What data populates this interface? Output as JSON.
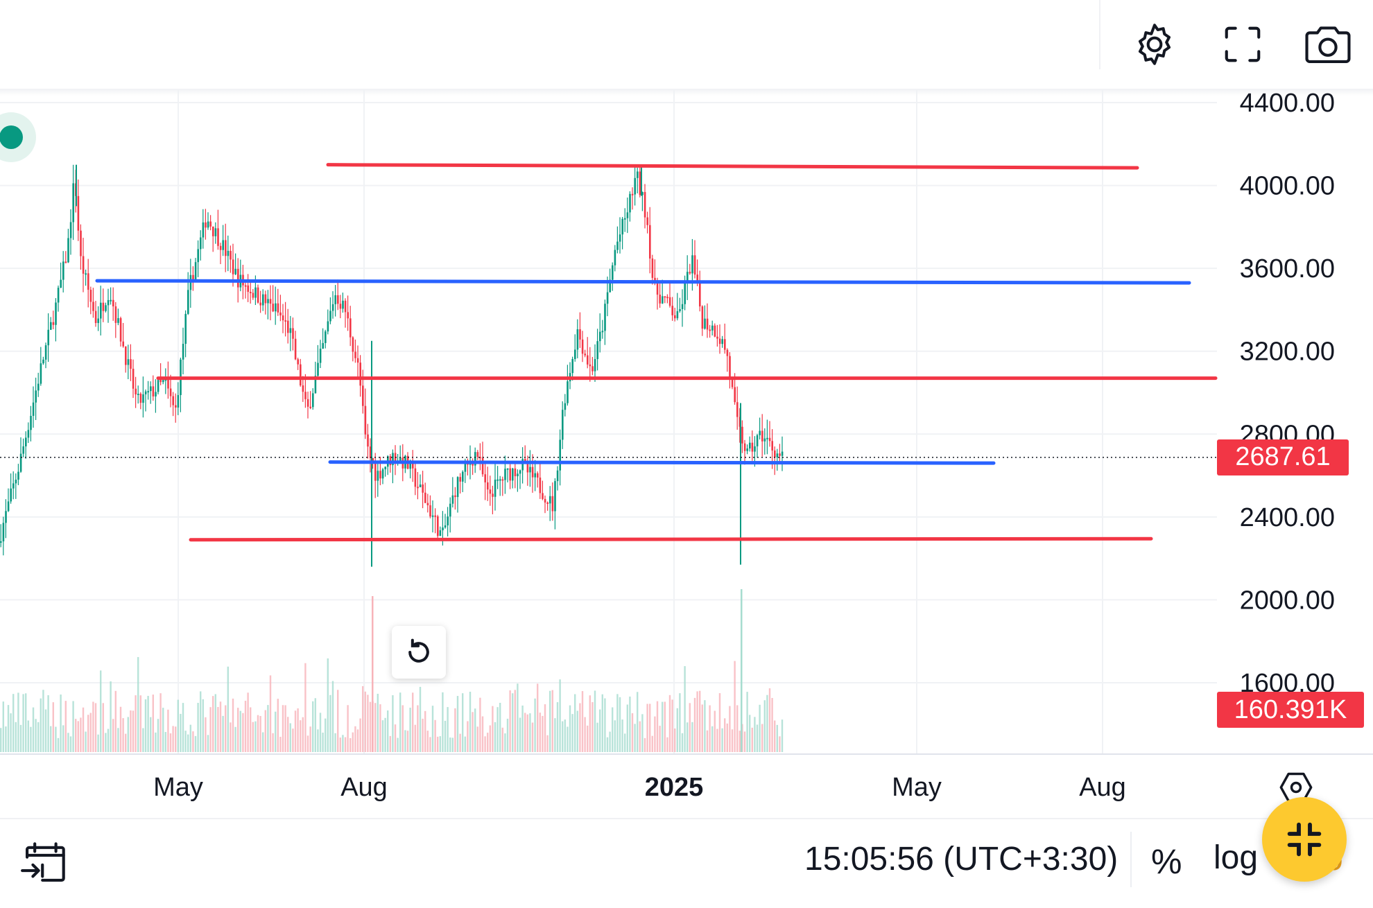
{
  "toolbar": {
    "settings_icon": "gear-icon",
    "fullscreen_icon": "fullscreen-icon",
    "screenshot_icon": "camera-icon"
  },
  "chart_data": {
    "type": "candlestick",
    "title": "",
    "xlabel": "",
    "ylabel": "",
    "ylim": [
      1600,
      4400
    ],
    "y_ticks": [
      "4400.00",
      "4000.00",
      "3600.00",
      "3200.00",
      "2800.00",
      "2400.00",
      "2000.00",
      "1600.00"
    ],
    "x_ticks": [
      {
        "label": "May",
        "bold": false
      },
      {
        "label": "Aug",
        "bold": false
      },
      {
        "label": "2025",
        "bold": true
      },
      {
        "label": "May",
        "bold": false
      },
      {
        "label": "Aug",
        "bold": false
      }
    ],
    "grid": true,
    "last_price": "2687.61",
    "last_volume": "160.391K",
    "horizontal_lines": [
      {
        "color": "#f23645",
        "price_start": 4100,
        "price_end": 4085
      },
      {
        "color": "#2962ff",
        "price_start": 3540,
        "price_end": 3530
      },
      {
        "color": "#f23645",
        "price_start": 3070,
        "price_end": 3070
      },
      {
        "color": "#2962ff",
        "price_start": 2665,
        "price_end": 2660
      },
      {
        "color": "#f23645",
        "price_start": 2290,
        "price_end": 2295
      }
    ],
    "colors": {
      "up": "#089981",
      "down": "#f23645",
      "price_tag": "#f23645"
    }
  },
  "bottom": {
    "date_range_icon": "calendar-range-icon",
    "clock": "15:05:56 (UTC+3:30)",
    "percent": "%",
    "log": "log",
    "auto_peek": "o",
    "scale_settings_icon": "scale-settings-icon",
    "fab_icon": "exit-fullscreen-icon",
    "reset_icon": "reset-icon"
  }
}
